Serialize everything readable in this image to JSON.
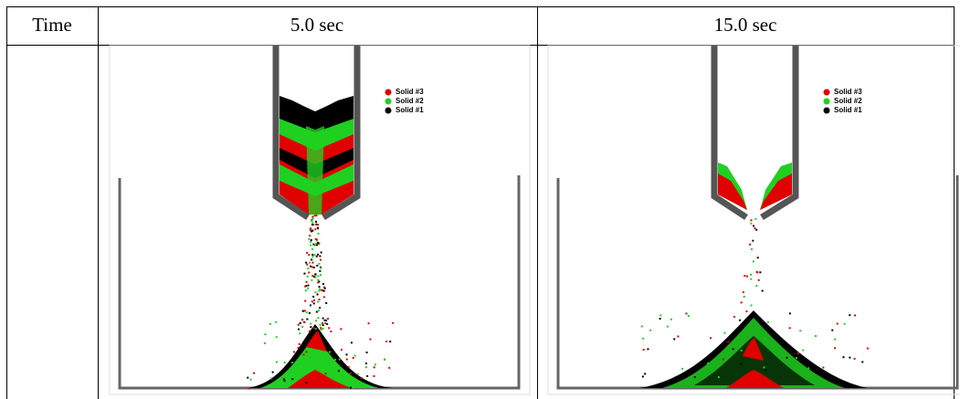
{
  "table": {
    "header": [
      "Time",
      "5.0 sec",
      "15.0 sec"
    ],
    "panels": [
      {
        "legend": [
          "Solid #3",
          "Solid #2",
          "Solid #1"
        ]
      },
      {
        "legend": [
          "Solid #3",
          "Solid #2",
          "Solid #1"
        ]
      }
    ]
  }
}
